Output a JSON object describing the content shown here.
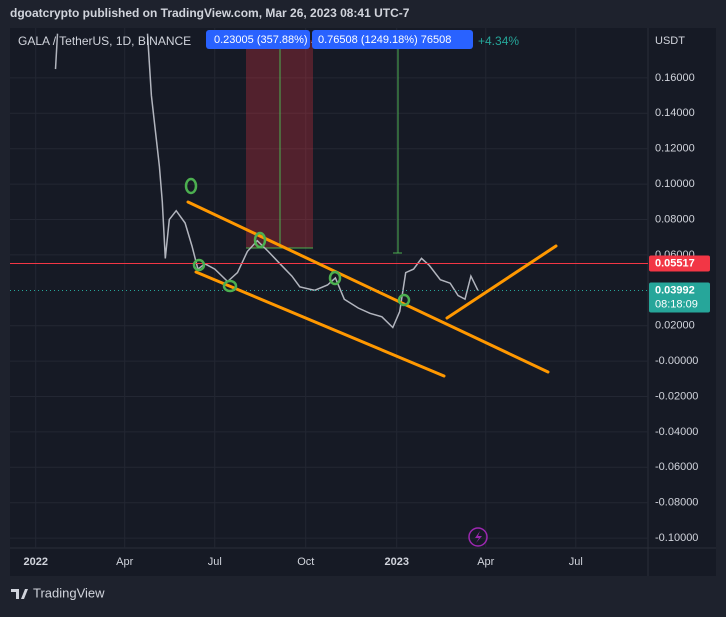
{
  "header": "dgoatcrypto published on TradingView.com, Mar 26, 2023 08:41 UTC-7",
  "footer": "TradingView",
  "chart_data": {
    "type": "line",
    "title": "GALA / TetherUS, 1D, BINANCE",
    "change": "+4.34%",
    "axis_label": "USDT",
    "annotations": [
      "0.23005 (357.88%) ...",
      "0.76508 (1249.18%) 76508"
    ],
    "x": [
      20,
      22,
      24,
      113,
      117,
      121,
      125,
      128,
      131,
      135,
      142,
      151,
      158,
      164,
      171,
      181,
      194,
      204,
      214,
      224,
      235,
      247,
      259,
      267,
      282,
      295,
      303,
      312,
      326,
      338,
      350,
      361,
      368,
      374,
      382,
      390,
      398,
      409,
      419,
      427,
      434,
      440,
      447
    ],
    "series": [
      {
        "color": "#b2b5be",
        "values": [
          0.165,
          0.185,
          null,
          0.185,
          0.15,
          0.13,
          0.11,
          0.09,
          0.058,
          0.08,
          0.085,
          0.078,
          0.065,
          0.052,
          0.055,
          0.052,
          0.045,
          0.05,
          0.062,
          0.068,
          0.062,
          0.055,
          0.048,
          0.042,
          0.04,
          0.043,
          0.047,
          0.035,
          0.03,
          0.027,
          0.025,
          0.019,
          0.028,
          0.05,
          0.052,
          0.058,
          0.054,
          0.046,
          0.044,
          0.037,
          0.035,
          0.048,
          0.04
        ]
      }
    ],
    "levels": [
      {
        "value": 0.05517,
        "color": "#f23645"
      },
      {
        "value": 0.03992,
        "color": "#26a69a",
        "countdown": "08:18:09"
      }
    ],
    "xlim": [
      -26,
      619
    ],
    "ylim": [
      -0.1056,
      0.1882
    ],
    "xticks": [
      {
        "value": 0,
        "label": "2022"
      },
      {
        "value": 90,
        "label": "Apr"
      },
      {
        "value": 181,
        "label": "Jul"
      },
      {
        "value": 273,
        "label": "Oct"
      },
      {
        "value": 365,
        "label": "2023"
      },
      {
        "value": 455,
        "label": "Apr"
      },
      {
        "value": 546,
        "label": "Jul"
      }
    ],
    "yticks": [
      {
        "value": 0.16,
        "label": "0.16000"
      },
      {
        "value": 0.14,
        "label": "0.14000"
      },
      {
        "value": 0.12,
        "label": "0.12000"
      },
      {
        "value": 0.1,
        "label": "0.10000"
      },
      {
        "value": 0.08,
        "label": "0.08000"
      },
      {
        "value": 0.06,
        "label": "0.06000"
      },
      {
        "value": 0.02,
        "label": "0.02000"
      },
      {
        "value": 0,
        "label": "-0.00000"
      },
      {
        "value": -0.02,
        "label": "-0.02000"
      },
      {
        "value": -0.04,
        "label": "-0.04000"
      },
      {
        "value": -0.06,
        "label": "-0.06000"
      },
      {
        "value": -0.08,
        "label": "-0.08000"
      },
      {
        "value": -0.1,
        "label": "-0.10000"
      }
    ],
    "grid": true
  }
}
